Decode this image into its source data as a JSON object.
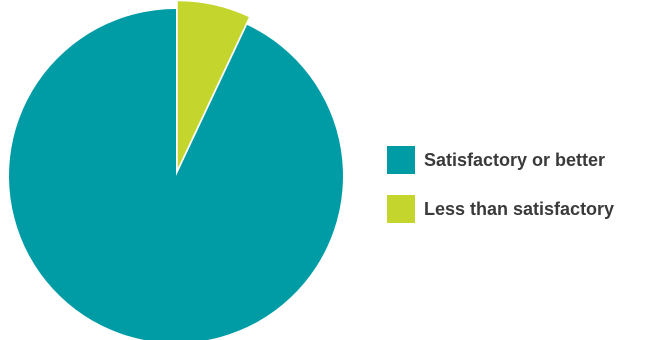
{
  "chart_data": {
    "type": "pie",
    "title": "",
    "slices": [
      {
        "label": "Satisfactory or better",
        "value": 93,
        "color": "#009ca6"
      },
      {
        "label": "Less than satisfactory",
        "value": 7,
        "color": "#c4d52e"
      }
    ],
    "exploded_slice": "Less than satisfactory",
    "legend_position": "right"
  }
}
